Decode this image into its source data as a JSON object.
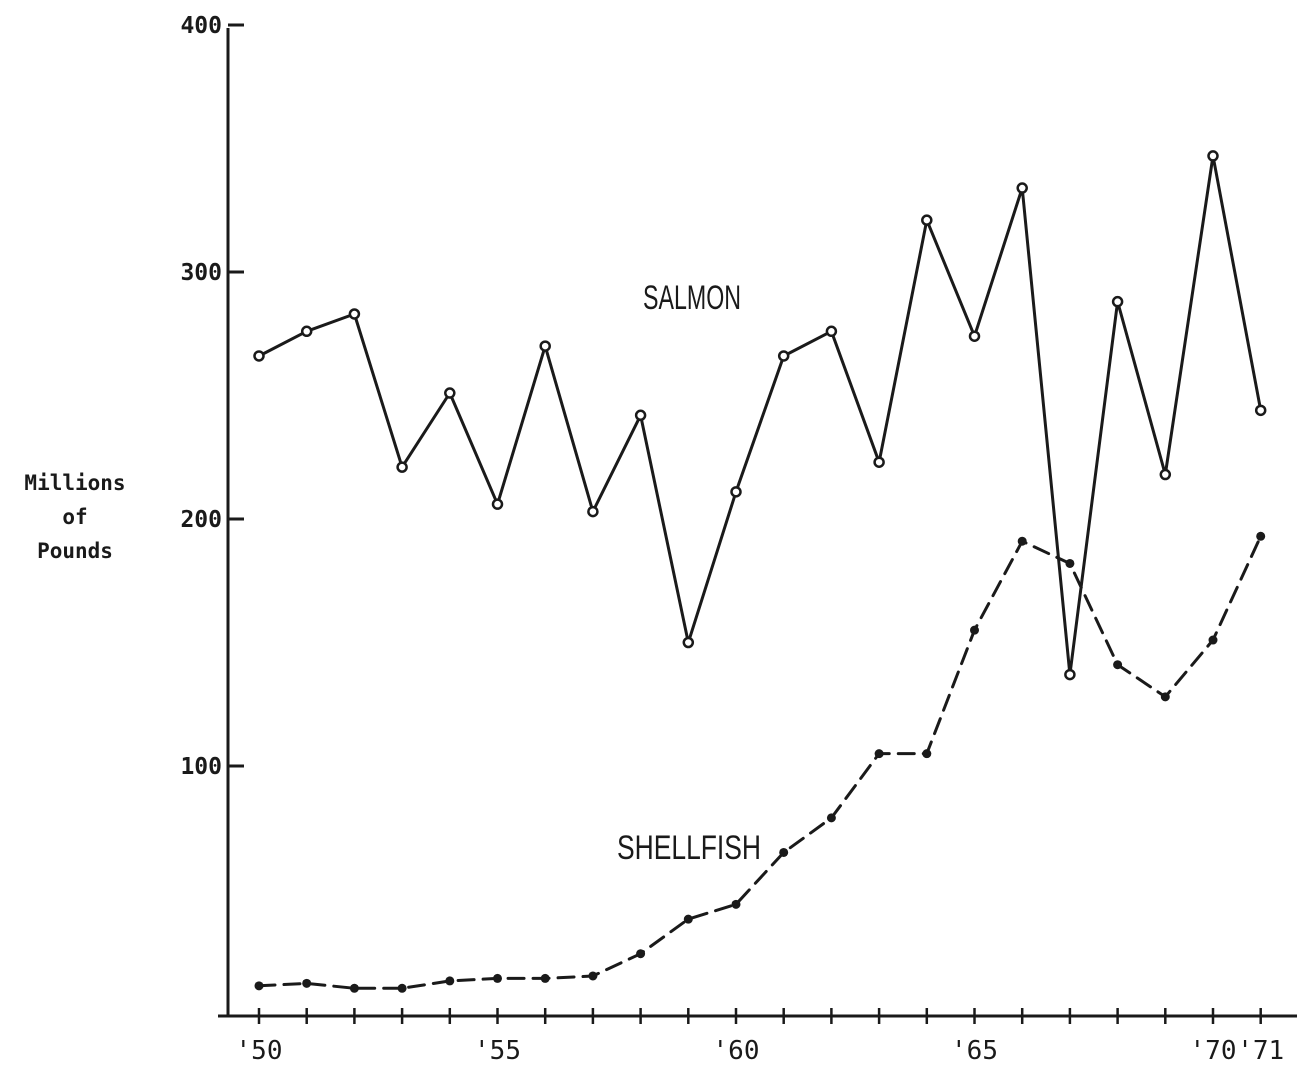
{
  "chart_data": {
    "type": "line",
    "title": "",
    "ylabel_lines": [
      "Millions",
      "of",
      "Pounds"
    ],
    "xlabel": "",
    "x": [
      1950,
      1951,
      1952,
      1953,
      1954,
      1955,
      1956,
      1957,
      1958,
      1959,
      1960,
      1961,
      1962,
      1963,
      1964,
      1965,
      1966,
      1967,
      1968,
      1969,
      1970,
      1971
    ],
    "ylim": [
      0,
      400
    ],
    "xlim": [
      1949.2,
      1971.7
    ],
    "y_ticks": [
      100,
      200,
      300,
      400
    ],
    "y_tick_labels": [
      "100",
      "200",
      "300",
      "400"
    ],
    "x_ticks": [
      1950,
      1951,
      1952,
      1953,
      1954,
      1955,
      1956,
      1957,
      1958,
      1959,
      1960,
      1961,
      1962,
      1963,
      1964,
      1965,
      1966,
      1967,
      1968,
      1969,
      1970,
      1971
    ],
    "x_tick_labels": [
      {
        "x": 1950,
        "label": "'50"
      },
      {
        "x": 1955,
        "label": "'55"
      },
      {
        "x": 1960,
        "label": "'60"
      },
      {
        "x": 1965,
        "label": "'65"
      },
      {
        "x": 1970,
        "label": "'70"
      },
      {
        "x": 1971,
        "label": "'71"
      }
    ],
    "grid": false,
    "legend": "none",
    "series": [
      {
        "name": "SALMON",
        "style": "solid",
        "color": "#1a1a1a",
        "values": [
          266,
          276,
          283,
          221,
          251,
          206,
          270,
          203,
          242,
          150,
          211,
          266,
          276,
          223,
          321,
          274,
          334,
          137,
          288,
          218,
          347,
          244
        ]
      },
      {
        "name": "SHELLFISH",
        "style": "dashed",
        "color": "#1a1a1a",
        "values": [
          11,
          12,
          10,
          10,
          13,
          14,
          14,
          15,
          24,
          38,
          44,
          65,
          79,
          105,
          105,
          155,
          191,
          182,
          141,
          128,
          151,
          193
        ]
      }
    ]
  }
}
